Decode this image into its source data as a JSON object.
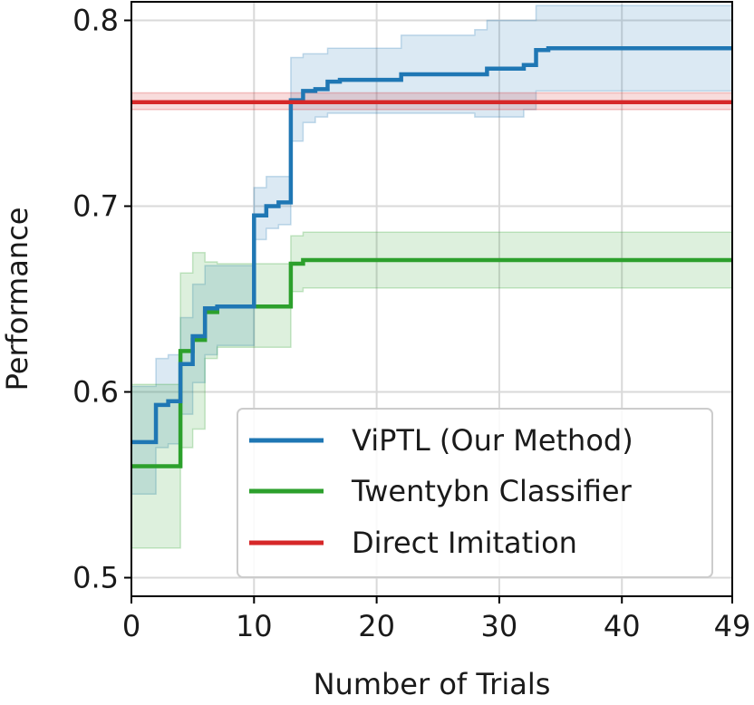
{
  "chart_data": {
    "type": "line",
    "title": "",
    "xlabel": "Number of Trials",
    "ylabel": "Performance",
    "xlim": [
      0,
      49
    ],
    "ylim": [
      0.49,
      0.81
    ],
    "xticks": [
      0,
      10,
      20,
      30,
      40,
      49
    ],
    "yticks": [
      0.5,
      0.6,
      0.7,
      0.8
    ],
    "xtick_labels": [
      "0",
      "10",
      "20",
      "30",
      "40",
      "49"
    ],
    "ytick_labels": [
      "0.5",
      "0.6",
      "0.7",
      "0.8"
    ],
    "grid": true,
    "legend_position": "lower-right",
    "series": [
      {
        "name": "ViPTL (Our Method)",
        "color": "#1f77b4",
        "x": [
          0,
          1,
          2,
          3,
          4,
          5,
          6,
          7,
          8,
          9,
          10,
          11,
          12,
          13,
          14,
          15,
          16,
          17,
          18,
          19,
          20,
          21,
          22,
          23,
          24,
          25,
          26,
          27,
          28,
          29,
          30,
          31,
          32,
          33,
          34,
          35,
          36,
          37,
          38,
          39,
          40,
          41,
          42,
          43,
          44,
          45,
          46,
          47,
          48,
          49
        ],
        "values": [
          0.573,
          0.573,
          0.593,
          0.595,
          0.615,
          0.63,
          0.645,
          0.646,
          0.646,
          0.646,
          0.695,
          0.7,
          0.702,
          0.757,
          0.762,
          0.763,
          0.767,
          0.768,
          0.768,
          0.768,
          0.768,
          0.768,
          0.771,
          0.771,
          0.771,
          0.771,
          0.771,
          0.771,
          0.771,
          0.774,
          0.774,
          0.774,
          0.776,
          0.784,
          0.785,
          0.785,
          0.785,
          0.785,
          0.785,
          0.785,
          0.785,
          0.785,
          0.785,
          0.785,
          0.785,
          0.785,
          0.785,
          0.785,
          0.785,
          0.785
        ],
        "lower": [
          0.545,
          0.545,
          0.57,
          0.572,
          0.588,
          0.605,
          0.62,
          0.625,
          0.625,
          0.625,
          0.682,
          0.688,
          0.69,
          0.735,
          0.745,
          0.748,
          0.75,
          0.75,
          0.75,
          0.75,
          0.75,
          0.75,
          0.75,
          0.75,
          0.75,
          0.75,
          0.75,
          0.75,
          0.748,
          0.748,
          0.748,
          0.748,
          0.752,
          0.762,
          0.762,
          0.762,
          0.762,
          0.762,
          0.762,
          0.762,
          0.762,
          0.762,
          0.762,
          0.762,
          0.762,
          0.762,
          0.762,
          0.762,
          0.762,
          0.762
        ],
        "upper": [
          0.603,
          0.603,
          0.618,
          0.62,
          0.64,
          0.658,
          0.668,
          0.668,
          0.668,
          0.668,
          0.71,
          0.716,
          0.716,
          0.78,
          0.782,
          0.782,
          0.785,
          0.785,
          0.785,
          0.785,
          0.785,
          0.785,
          0.792,
          0.792,
          0.792,
          0.792,
          0.792,
          0.792,
          0.795,
          0.8,
          0.8,
          0.8,
          0.8,
          0.808,
          0.808,
          0.808,
          0.808,
          0.808,
          0.808,
          0.808,
          0.808,
          0.808,
          0.808,
          0.808,
          0.808,
          0.808,
          0.808,
          0.808,
          0.808,
          0.808
        ]
      },
      {
        "name": "Twentybn Classifier",
        "color": "#2ca02c",
        "x": [
          0,
          1,
          2,
          3,
          4,
          5,
          6,
          7,
          8,
          9,
          10,
          11,
          12,
          13,
          14,
          15,
          16,
          17,
          18,
          19,
          20,
          21,
          22,
          23,
          24,
          25,
          26,
          27,
          28,
          29,
          30,
          31,
          32,
          33,
          34,
          35,
          36,
          37,
          38,
          39,
          40,
          41,
          42,
          43,
          44,
          45,
          46,
          47,
          48,
          49
        ],
        "values": [
          0.56,
          0.56,
          0.56,
          0.56,
          0.622,
          0.628,
          0.643,
          0.646,
          0.646,
          0.646,
          0.646,
          0.646,
          0.646,
          0.669,
          0.671,
          0.671,
          0.671,
          0.671,
          0.671,
          0.671,
          0.671,
          0.671,
          0.671,
          0.671,
          0.671,
          0.671,
          0.671,
          0.671,
          0.671,
          0.671,
          0.671,
          0.671,
          0.671,
          0.671,
          0.671,
          0.671,
          0.671,
          0.671,
          0.671,
          0.671,
          0.671,
          0.671,
          0.671,
          0.671,
          0.671,
          0.671,
          0.671,
          0.671,
          0.671,
          0.671
        ],
        "lower": [
          0.516,
          0.516,
          0.516,
          0.516,
          0.57,
          0.58,
          0.618,
          0.624,
          0.624,
          0.624,
          0.624,
          0.624,
          0.624,
          0.654,
          0.656,
          0.656,
          0.656,
          0.656,
          0.656,
          0.656,
          0.656,
          0.656,
          0.656,
          0.656,
          0.656,
          0.656,
          0.656,
          0.656,
          0.656,
          0.656,
          0.656,
          0.656,
          0.656,
          0.656,
          0.656,
          0.656,
          0.656,
          0.656,
          0.656,
          0.656,
          0.656,
          0.656,
          0.656,
          0.656,
          0.656,
          0.656,
          0.656,
          0.656,
          0.656,
          0.656
        ],
        "upper": [
          0.604,
          0.604,
          0.604,
          0.604,
          0.664,
          0.675,
          0.67,
          0.669,
          0.669,
          0.669,
          0.669,
          0.669,
          0.669,
          0.684,
          0.686,
          0.686,
          0.686,
          0.686,
          0.686,
          0.686,
          0.686,
          0.686,
          0.686,
          0.686,
          0.686,
          0.686,
          0.686,
          0.686,
          0.686,
          0.686,
          0.686,
          0.686,
          0.686,
          0.686,
          0.686,
          0.686,
          0.686,
          0.686,
          0.686,
          0.686,
          0.686,
          0.686,
          0.686,
          0.686,
          0.686,
          0.686,
          0.686,
          0.686,
          0.686,
          0.686
        ]
      },
      {
        "name": "Direct Imitation",
        "color": "#d62728",
        "x": [
          0,
          49
        ],
        "values": [
          0.756,
          0.756
        ],
        "lower": [
          0.752,
          0.752
        ],
        "upper": [
          0.761,
          0.761
        ]
      }
    ]
  }
}
